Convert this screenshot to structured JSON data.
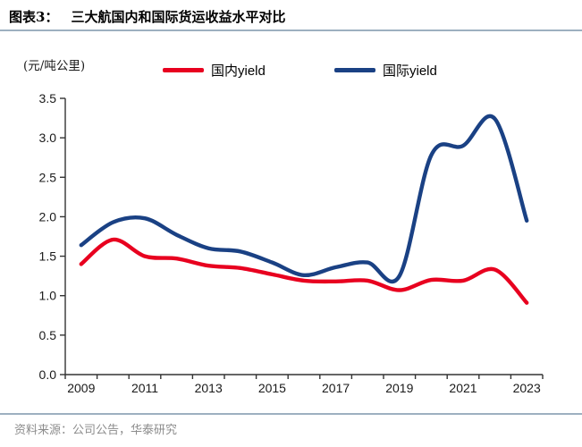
{
  "header": {
    "prefix": "图表3：",
    "title": "三大航国内和国际货运收益水平对比"
  },
  "chart_data": {
    "type": "line",
    "title": "三大航国内和国际货运收益水平对比",
    "unit_label": "(元/吨公里)",
    "categories": [
      2009,
      2010,
      2011,
      2012,
      2013,
      2014,
      2015,
      2016,
      2017,
      2018,
      2019,
      2020,
      2021,
      2022,
      2023
    ],
    "x_tick_labels": [
      "2009",
      "2011",
      "2013",
      "2015",
      "2017",
      "2019",
      "2021",
      "2023"
    ],
    "y_ticks": [
      "0.0",
      "0.5",
      "1.0",
      "1.5",
      "2.0",
      "2.5",
      "3.0",
      "3.5"
    ],
    "ylim": [
      0,
      3.5
    ],
    "grid": false,
    "legend_position": "top",
    "series": [
      {
        "name": "国内yield",
        "color": "#e8001f",
        "values": [
          1.4,
          1.71,
          1.5,
          1.47,
          1.38,
          1.35,
          1.27,
          1.19,
          1.18,
          1.19,
          1.07,
          1.2,
          1.19,
          1.33,
          0.91
        ]
      },
      {
        "name": "国际yield",
        "color": "#1a4184",
        "values": [
          1.64,
          1.93,
          1.98,
          1.77,
          1.6,
          1.56,
          1.42,
          1.26,
          1.36,
          1.42,
          1.25,
          2.78,
          2.9,
          3.24,
          1.95
        ]
      }
    ]
  },
  "footer": {
    "source": "资料来源：公司公告，华泰研究"
  }
}
